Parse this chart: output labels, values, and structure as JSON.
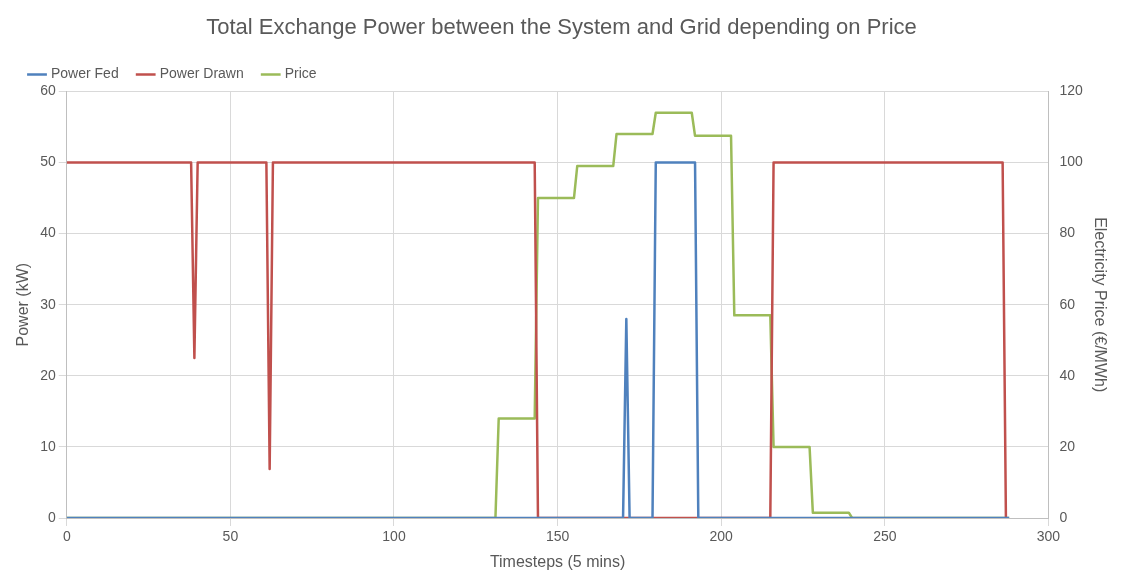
{
  "chart_data": {
    "type": "line",
    "title": "Total Exchange Power between the System and Grid depending on Price",
    "xlabel": "Timesteps (5 mins)",
    "ylabel": "Power (kW)",
    "y2label": "Electricity Price (€/MWh)",
    "xlim": [
      0,
      300
    ],
    "xticks": [
      0,
      50,
      100,
      150,
      200,
      250,
      300
    ],
    "ylim": [
      0,
      60
    ],
    "yticks": [
      0,
      10,
      20,
      30,
      40,
      50,
      60
    ],
    "y2lim": [
      0,
      120
    ],
    "y2ticks": [
      0,
      20,
      40,
      60,
      80,
      100,
      120
    ],
    "grid": true,
    "legend": "top left",
    "marker": "none",
    "line_style": "solid",
    "series": [
      {
        "name": "Power Fed",
        "color": "#4f81bd",
        "x": [
          0,
          170,
          171,
          172,
          179,
          180,
          192,
          193,
          288
        ],
        "values": [
          0,
          0,
          28,
          0,
          0,
          50,
          50,
          0,
          0
        ]
      },
      {
        "name": "Power Drawn",
        "color": "#c0504d",
        "x": [
          0,
          38,
          39,
          40,
          61,
          62,
          63,
          143,
          144,
          215,
          216,
          286,
          287
        ],
        "values": [
          50,
          50,
          22.5,
          50,
          50,
          6.9,
          50,
          50,
          0,
          0,
          50,
          50,
          0
        ]
      },
      {
        "name": "Price",
        "color": "#9bbb59",
        "axis": "y2",
        "x": [
          0,
          131,
          132,
          143,
          144,
          155,
          156,
          167,
          168,
          179,
          180,
          191,
          192,
          203,
          204,
          215,
          216,
          227,
          228,
          239,
          240,
          288
        ],
        "values": [
          0,
          0,
          28,
          28,
          90,
          90,
          99,
          99,
          108,
          108,
          114,
          114,
          107.5,
          107.5,
          57,
          57,
          20,
          20,
          1.5,
          1.5,
          0,
          0
        ]
      }
    ]
  }
}
